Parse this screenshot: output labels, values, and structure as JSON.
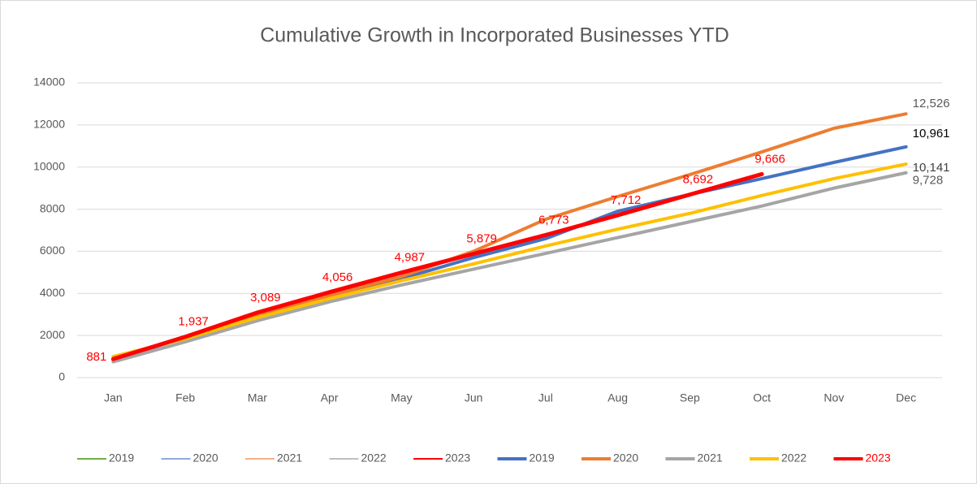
{
  "chart_data": {
    "type": "line",
    "title": "Cumulative Growth in Incorporated  Businesses YTD",
    "categories": [
      "Jan",
      "Feb",
      "Mar",
      "Apr",
      "May",
      "Jun",
      "Jul",
      "Aug",
      "Sep",
      "Oct",
      "Nov",
      "Dec"
    ],
    "ylim": [
      0,
      14000
    ],
    "yticks": [
      0,
      2000,
      4000,
      6000,
      8000,
      10000,
      12000,
      14000
    ],
    "grid": true,
    "series": [
      {
        "name": "2019",
        "color": "#70ad47",
        "width": 2,
        "values": [
          null,
          null,
          null,
          null,
          null,
          null,
          null,
          null,
          null,
          null,
          null,
          null
        ]
      },
      {
        "name": "2020",
        "color": "#8faadc",
        "width": 2,
        "values": [
          null,
          null,
          null,
          null,
          null,
          null,
          null,
          null,
          null,
          null,
          null,
          null
        ]
      },
      {
        "name": "2021",
        "color": "#f4b183",
        "width": 2,
        "values": [
          null,
          null,
          null,
          null,
          null,
          null,
          null,
          null,
          null,
          null,
          null,
          null
        ]
      },
      {
        "name": "2022",
        "color": "#bfbfbf",
        "width": 2,
        "values": [
          null,
          null,
          null,
          null,
          null,
          null,
          null,
          null,
          null,
          null,
          null,
          null
        ]
      },
      {
        "name": "2023",
        "color": "#ff0000",
        "width": 2,
        "values": [
          null,
          null,
          null,
          null,
          null,
          null,
          null,
          null,
          null,
          null,
          null,
          null
        ]
      },
      {
        "name": "2019",
        "color": "#4472c4",
        "width": 4,
        "label_color": "#000000",
        "values": [
          850,
          1900,
          3000,
          3900,
          4700,
          5700,
          6600,
          7900,
          8700,
          9450,
          10220,
          10961
        ],
        "value_labels": [
          null,
          null,
          null,
          null,
          null,
          null,
          null,
          null,
          null,
          null,
          null,
          "10,961"
        ]
      },
      {
        "name": "2020",
        "color": "#ed7d31",
        "width": 4,
        "label_color": "#595959",
        "values": [
          900,
          1900,
          3000,
          3900,
          4800,
          6000,
          7520,
          8600,
          9640,
          10720,
          11840,
          12526
        ],
        "value_labels": [
          null,
          null,
          null,
          null,
          null,
          null,
          null,
          null,
          null,
          null,
          null,
          "12,526"
        ]
      },
      {
        "name": "2021",
        "color": "#a5a5a5",
        "width": 4,
        "label_color": "#595959",
        "values": [
          750,
          1700,
          2700,
          3600,
          4400,
          5150,
          5900,
          6650,
          7400,
          8150,
          9000,
          9728
        ],
        "value_labels": [
          null,
          null,
          null,
          null,
          null,
          null,
          null,
          null,
          null,
          null,
          null,
          "9,728"
        ]
      },
      {
        "name": "2022",
        "color": "#ffc000",
        "width": 4,
        "label_color": "#404040",
        "values": [
          1000,
          1850,
          2850,
          3750,
          4600,
          5400,
          6250,
          7050,
          7800,
          8650,
          9450,
          10141
        ],
        "value_labels": [
          null,
          null,
          null,
          null,
          null,
          null,
          null,
          null,
          null,
          null,
          null,
          "10,141"
        ]
      },
      {
        "name": "2023",
        "color": "#ff0000",
        "width": 5,
        "label_color": "#ff0000",
        "legend_text_color": "#ff0000",
        "values": [
          881,
          1937,
          3089,
          4056,
          4987,
          5879,
          6773,
          7712,
          8692,
          9666,
          null,
          null
        ],
        "value_labels": [
          "881",
          "1,937",
          "3,089",
          "4,056",
          "4,987",
          "5,879",
          "6,773",
          "7,712",
          "8,692",
          "9,666",
          null,
          null
        ]
      }
    ]
  }
}
